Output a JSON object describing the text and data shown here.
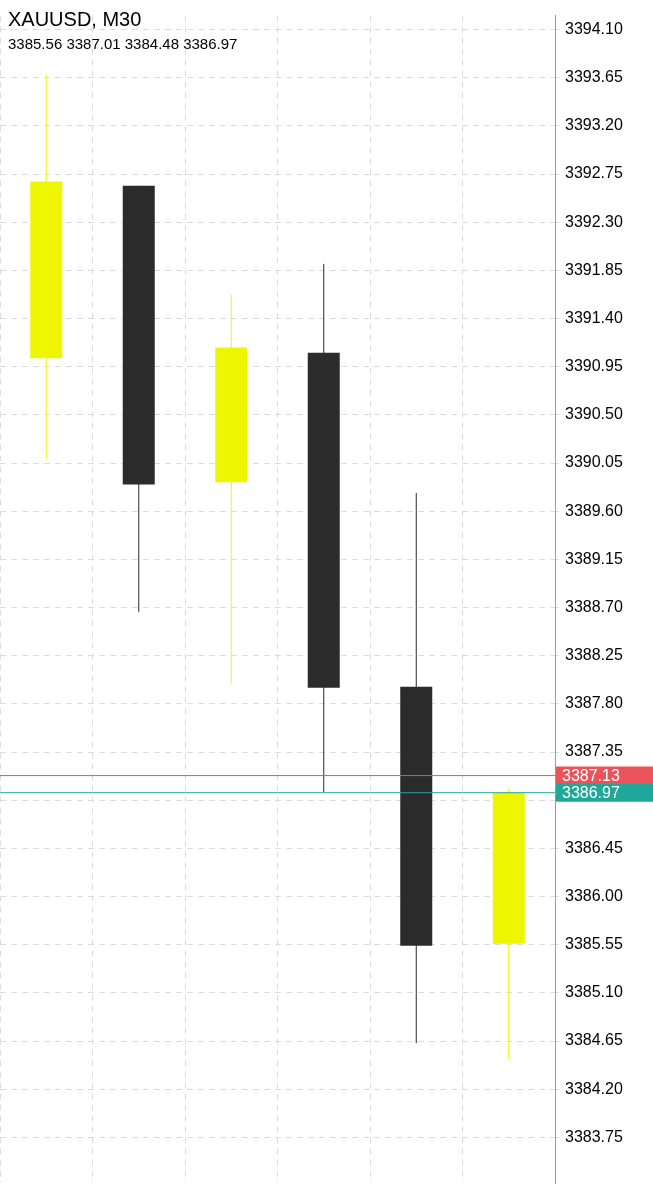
{
  "chart_data": {
    "type": "candlestick",
    "title": "XAUUSD, M30",
    "subtitle": "3385.56 3387.01 3384.48 3386.97",
    "categories": [
      null,
      null,
      null,
      null,
      null,
      null
    ],
    "ohlc": [
      [
        3391.03,
        3393.68,
        3390.09,
        3392.68
      ],
      [
        3392.64,
        3392.64,
        3388.66,
        3389.85
      ],
      [
        3389.87,
        3391.62,
        3387.99,
        3391.13
      ],
      [
        3391.08,
        3391.91,
        3386.97,
        3387.95
      ],
      [
        3387.96,
        3389.77,
        3384.63,
        3385.54
      ],
      [
        3385.56,
        3387.01,
        3384.48,
        3386.97
      ]
    ],
    "colors": [
      "#eef500",
      "#2b2b2b",
      "#eef500",
      "#2b2b2b",
      "#2b2b2b",
      "#eef500"
    ],
    "ylim": [
      3383.32,
      3394.23
    ],
    "yticks": [
      3383.75,
      {
        "value": 3384.2,
        "label": "3384.20"
      },
      3384.65,
      {
        "value": 3385.1,
        "label": "3385.10"
      },
      3385.55,
      {
        "value": 3386.0,
        "label": "3386.00"
      },
      3386.45,
      {
        "value": 3386.9,
        "label": null
      },
      3387.35,
      {
        "value": 3387.8,
        "label": "3387.80"
      },
      3388.25,
      {
        "value": 3388.7,
        "label": "3388.70"
      },
      3389.15,
      {
        "value": 3389.6,
        "label": "3389.60"
      },
      3390.05,
      {
        "value": 3390.5,
        "label": "3390.50"
      },
      3390.95,
      {
        "value": 3391.4,
        "label": "3391.40"
      },
      3391.85,
      {
        "value": 3392.3,
        "label": "3392.30"
      },
      3392.75,
      {
        "value": 3393.2,
        "label": "3393.20"
      },
      3393.65,
      {
        "value": 3394.1,
        "label": "3394.10"
      }
    ],
    "ref_lines": [
      {
        "axis": "y",
        "value": 3387.13,
        "label": "3387.13",
        "color": "#e8545a"
      },
      {
        "axis": "y",
        "value": 3386.97,
        "label": "3386.97",
        "color": "#1fa89a"
      }
    ],
    "grid": true,
    "legend": false
  }
}
